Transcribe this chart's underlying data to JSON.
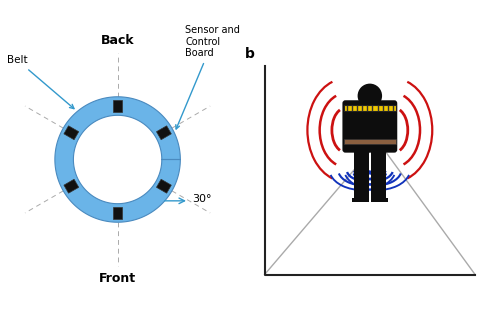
{
  "bg_color": "#ffffff",
  "belt_color": "#6ab4e8",
  "belt_ring_outer": 0.88,
  "belt_ring_inner": 0.62,
  "sensor_color": "#111111",
  "sensor_positions_deg": [
    90,
    30,
    -30,
    -90,
    210,
    150
  ],
  "label_back": "Back",
  "label_front": "Front",
  "label_belt": "Belt",
  "label_sensor": "Sensor and\nControl\nBoard",
  "label_30deg": "30°",
  "panel_b_label": "b",
  "fig_width": 4.8,
  "fig_height": 3.19,
  "dpi": 100,
  "person_color": "#0d0d0d",
  "belt_upper_color": "#f0c800",
  "belt_lower_color": "#8b6040",
  "red_wave_color": "#cc1111",
  "blue_wave_color": "#1133bb",
  "axis_line_color": "#888888"
}
